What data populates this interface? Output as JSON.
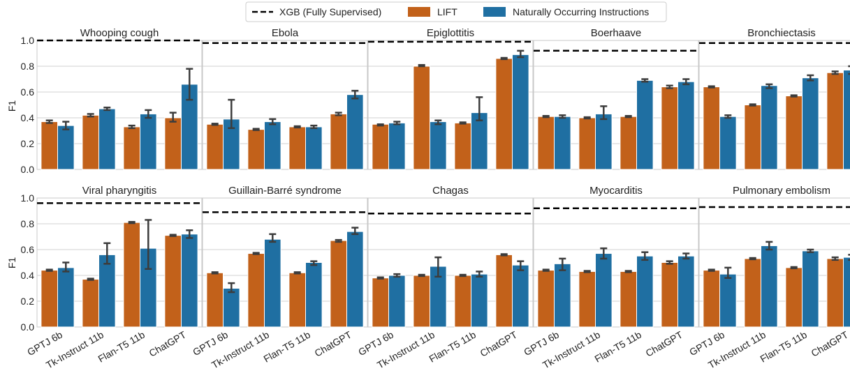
{
  "legend": {
    "baseline_label": "XGB (Fully Supervised)",
    "lift_label": "LIFT",
    "noi_label": "Naturally Occurring Instructions"
  },
  "colors": {
    "lift": "#c2611a",
    "noi": "#1f6fa2",
    "baseline": "#000000",
    "errorbar": "#3c3c3c",
    "grid": "#d0d0d0",
    "frame": "#c8c8c8"
  },
  "y_tick_labels": [
    "0.0",
    "0.2",
    "0.4",
    "0.6",
    "0.8",
    "1.0"
  ],
  "chart_data": {
    "type": "bar",
    "ylabel": "F1",
    "ylim": [
      0,
      1
    ],
    "grid": true,
    "legend_position": "top-center",
    "categories": [
      "GPTJ 6b",
      "Tk-Instruct 11b",
      "Flan-T5 11b",
      "ChatGPT"
    ],
    "panels": [
      {
        "title": "Whooping cough",
        "baseline": 1.0,
        "series": [
          {
            "name": "LIFT",
            "values": [
              0.37,
              0.42,
              0.33,
              0.4
            ],
            "err": [
              [
                0.36,
                0.38
              ],
              [
                0.41,
                0.43
              ],
              [
                0.32,
                0.34
              ],
              [
                0.37,
                0.44
              ]
            ]
          },
          {
            "name": "Naturally Occurring Instructions",
            "values": [
              0.34,
              0.47,
              0.43,
              0.66
            ],
            "err": [
              [
                0.31,
                0.37
              ],
              [
                0.46,
                0.48
              ],
              [
                0.4,
                0.46
              ],
              [
                0.54,
                0.78
              ]
            ]
          }
        ]
      },
      {
        "title": "Ebola",
        "baseline": 0.98,
        "series": [
          {
            "name": "LIFT",
            "values": [
              0.35,
              0.31,
              0.33,
              0.43
            ],
            "err": [
              [
                0.345,
                0.355
              ],
              [
                0.305,
                0.315
              ],
              [
                0.325,
                0.335
              ],
              [
                0.42,
                0.44
              ]
            ]
          },
          {
            "name": "Naturally Occurring Instructions",
            "values": [
              0.39,
              0.37,
              0.33,
              0.58
            ],
            "err": [
              [
                0.32,
                0.54
              ],
              [
                0.35,
                0.39
              ],
              [
                0.32,
                0.34
              ],
              [
                0.55,
                0.61
              ]
            ]
          }
        ]
      },
      {
        "title": "Epiglottitis",
        "baseline": 0.99,
        "series": [
          {
            "name": "LIFT",
            "values": [
              0.35,
              0.8,
              0.36,
              0.86
            ],
            "err": [
              [
                0.34,
                0.35
              ],
              [
                0.8,
                0.81
              ],
              [
                0.355,
                0.365
              ],
              [
                0.855,
                0.865
              ]
            ]
          },
          {
            "name": "Naturally Occurring Instructions",
            "values": [
              0.36,
              0.37,
              0.44,
              0.89
            ],
            "err": [
              [
                0.35,
                0.37
              ],
              [
                0.35,
                0.38
              ],
              [
                0.38,
                0.56
              ],
              [
                0.87,
                0.92
              ]
            ]
          }
        ]
      },
      {
        "title": "Boerhaave",
        "baseline": 0.92,
        "series": [
          {
            "name": "LIFT",
            "values": [
              0.41,
              0.4,
              0.41,
              0.64
            ],
            "err": [
              [
                0.405,
                0.415
              ],
              [
                0.395,
                0.405
              ],
              [
                0.405,
                0.415
              ],
              [
                0.63,
                0.65
              ]
            ]
          },
          {
            "name": "Naturally Occurring Instructions",
            "values": [
              0.41,
              0.43,
              0.69,
              0.68
            ],
            "err": [
              [
                0.4,
                0.42
              ],
              [
                0.39,
                0.49
              ],
              [
                0.68,
                0.7
              ],
              [
                0.66,
                0.7
              ]
            ]
          }
        ]
      },
      {
        "title": "Bronchiectasis",
        "baseline": 0.98,
        "series": [
          {
            "name": "LIFT",
            "values": [
              0.64,
              0.5,
              0.57,
              0.75
            ],
            "err": [
              [
                0.635,
                0.645
              ],
              [
                0.495,
                0.505
              ],
              [
                0.565,
                0.575
              ],
              [
                0.74,
                0.76
              ]
            ]
          },
          {
            "name": "Naturally Occurring Instructions",
            "values": [
              0.41,
              0.65,
              0.71,
              0.77
            ],
            "err": [
              [
                0.4,
                0.42
              ],
              [
                0.63,
                0.66
              ],
              [
                0.69,
                0.73
              ],
              [
                0.74,
                0.8
              ]
            ]
          }
        ]
      },
      {
        "title": "Viral pharyngitis",
        "baseline": 0.96,
        "series": [
          {
            "name": "LIFT",
            "values": [
              0.44,
              0.37,
              0.81,
              0.71
            ],
            "err": [
              [
                0.435,
                0.445
              ],
              [
                0.365,
                0.375
              ],
              [
                0.805,
                0.815
              ],
              [
                0.705,
                0.715
              ]
            ]
          },
          {
            "name": "Naturally Occurring Instructions",
            "values": [
              0.46,
              0.56,
              0.61,
              0.72
            ],
            "err": [
              [
                0.43,
                0.5
              ],
              [
                0.49,
                0.65
              ],
              [
                0.45,
                0.83
              ],
              [
                0.69,
                0.75
              ]
            ]
          }
        ]
      },
      {
        "title": "Guillain-Barré syndrome",
        "baseline": 0.89,
        "series": [
          {
            "name": "LIFT",
            "values": [
              0.42,
              0.57,
              0.42,
              0.67
            ],
            "err": [
              [
                0.415,
                0.425
              ],
              [
                0.565,
                0.575
              ],
              [
                0.415,
                0.425
              ],
              [
                0.66,
                0.675
              ]
            ]
          },
          {
            "name": "Naturally Occurring Instructions",
            "values": [
              0.3,
              0.68,
              0.5,
              0.74
            ],
            "err": [
              [
                0.27,
                0.34
              ],
              [
                0.66,
                0.72
              ],
              [
                0.48,
                0.51
              ],
              [
                0.72,
                0.77
              ]
            ]
          }
        ]
      },
      {
        "title": "Chagas",
        "baseline": 0.88,
        "series": [
          {
            "name": "LIFT",
            "values": [
              0.38,
              0.4,
              0.4,
              0.56
            ],
            "err": [
              [
                0.375,
                0.385
              ],
              [
                0.395,
                0.405
              ],
              [
                0.395,
                0.405
              ],
              [
                0.555,
                0.565
              ]
            ]
          },
          {
            "name": "Naturally Occurring Instructions",
            "values": [
              0.4,
              0.47,
              0.41,
              0.48
            ],
            "err": [
              [
                0.39,
                0.41
              ],
              [
                0.39,
                0.54
              ],
              [
                0.39,
                0.43
              ],
              [
                0.44,
                0.51
              ]
            ]
          }
        ]
      },
      {
        "title": "Myocarditis",
        "baseline": 0.92,
        "series": [
          {
            "name": "LIFT",
            "values": [
              0.44,
              0.43,
              0.43,
              0.5
            ],
            "err": [
              [
                0.435,
                0.445
              ],
              [
                0.425,
                0.435
              ],
              [
                0.425,
                0.435
              ],
              [
                0.49,
                0.51
              ]
            ]
          },
          {
            "name": "Naturally Occurring Instructions",
            "values": [
              0.49,
              0.57,
              0.55,
              0.55
            ],
            "err": [
              [
                0.44,
                0.53
              ],
              [
                0.53,
                0.61
              ],
              [
                0.52,
                0.58
              ],
              [
                0.53,
                0.57
              ]
            ]
          }
        ]
      },
      {
        "title": "Pulmonary embolism",
        "baseline": 0.93,
        "series": [
          {
            "name": "LIFT",
            "values": [
              0.44,
              0.53,
              0.46,
              0.53
            ],
            "err": [
              [
                0.435,
                0.445
              ],
              [
                0.525,
                0.535
              ],
              [
                0.455,
                0.465
              ],
              [
                0.52,
                0.54
              ]
            ]
          },
          {
            "name": "Naturally Occurring Instructions",
            "values": [
              0.41,
              0.63,
              0.59,
              0.54
            ],
            "err": [
              [
                0.38,
                0.46
              ],
              [
                0.6,
                0.66
              ],
              [
                0.58,
                0.6
              ],
              [
                0.52,
                0.56
              ]
            ]
          }
        ]
      }
    ]
  }
}
